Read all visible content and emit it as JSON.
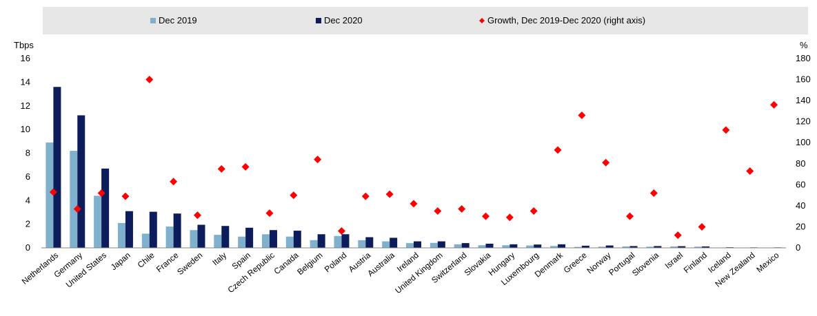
{
  "chart_data": {
    "type": "bar",
    "categories": [
      "Netherlands",
      "Germany",
      "United States",
      "Japan",
      "Chile",
      "France",
      "Sweden",
      "Italy",
      "Spain",
      "Czech Republic",
      "Canada",
      "Belgium",
      "Poland",
      "Austria",
      "Australia",
      "Ireland",
      "United Kingdom",
      "Switzerland",
      "Slovakia",
      "Hungary",
      "Luxembourg",
      "Denmark",
      "Greece",
      "Norway",
      "Portugal",
      "Slovenia",
      "Israel",
      "Finland",
      "Iceland",
      "New Zealand",
      "Mexico"
    ],
    "series": [
      {
        "name": "Dec 2019",
        "axis": "left",
        "kind": "bar",
        "color": "#7fb1cd",
        "values": [
          8.9,
          8.2,
          4.4,
          2.1,
          1.2,
          1.8,
          1.5,
          1.1,
          0.95,
          1.15,
          0.95,
          0.65,
          1.0,
          0.65,
          0.55,
          0.4,
          0.42,
          0.3,
          0.22,
          0.22,
          0.2,
          0.16,
          0.08,
          0.1,
          0.12,
          0.1,
          0.12,
          0.1,
          0.03,
          0.02,
          0.02
        ]
      },
      {
        "name": "Dec 2020",
        "axis": "left",
        "kind": "bar",
        "color": "#0d1d5c",
        "values": [
          13.6,
          11.2,
          6.7,
          3.1,
          3.05,
          2.9,
          1.95,
          1.85,
          1.7,
          1.5,
          1.45,
          1.15,
          1.15,
          0.9,
          0.85,
          0.55,
          0.55,
          0.4,
          0.35,
          0.3,
          0.28,
          0.3,
          0.18,
          0.2,
          0.15,
          0.15,
          0.14,
          0.12,
          0.05,
          0.04,
          0.04
        ]
      },
      {
        "name": "Growth, Dec 2019-Dec 2020 (right axis)",
        "axis": "right",
        "kind": "marker",
        "color": "#ff0000",
        "values": [
          53,
          37,
          52,
          49,
          160,
          63,
          31,
          75,
          77,
          33,
          50,
          84,
          16,
          49,
          51,
          42,
          35,
          37,
          30,
          29,
          35,
          93,
          126,
          81,
          30,
          52,
          12,
          20,
          112,
          73,
          136
        ]
      }
    ],
    "yaxis_left": {
      "label": "Tbps",
      "ylim": [
        0,
        16
      ],
      "ticks": [
        0,
        2,
        4,
        6,
        8,
        10,
        12,
        14,
        16
      ]
    },
    "yaxis_right": {
      "label": "%",
      "ylim": [
        0,
        180
      ],
      "ticks": [
        0,
        20,
        40,
        60,
        80,
        100,
        120,
        140,
        160,
        180
      ]
    },
    "legend": {
      "position": "top",
      "items": [
        "Dec 2019",
        "Dec 2020",
        "Growth, Dec 2019-Dec 2020 (right axis)"
      ]
    },
    "grid": false,
    "title": ""
  }
}
